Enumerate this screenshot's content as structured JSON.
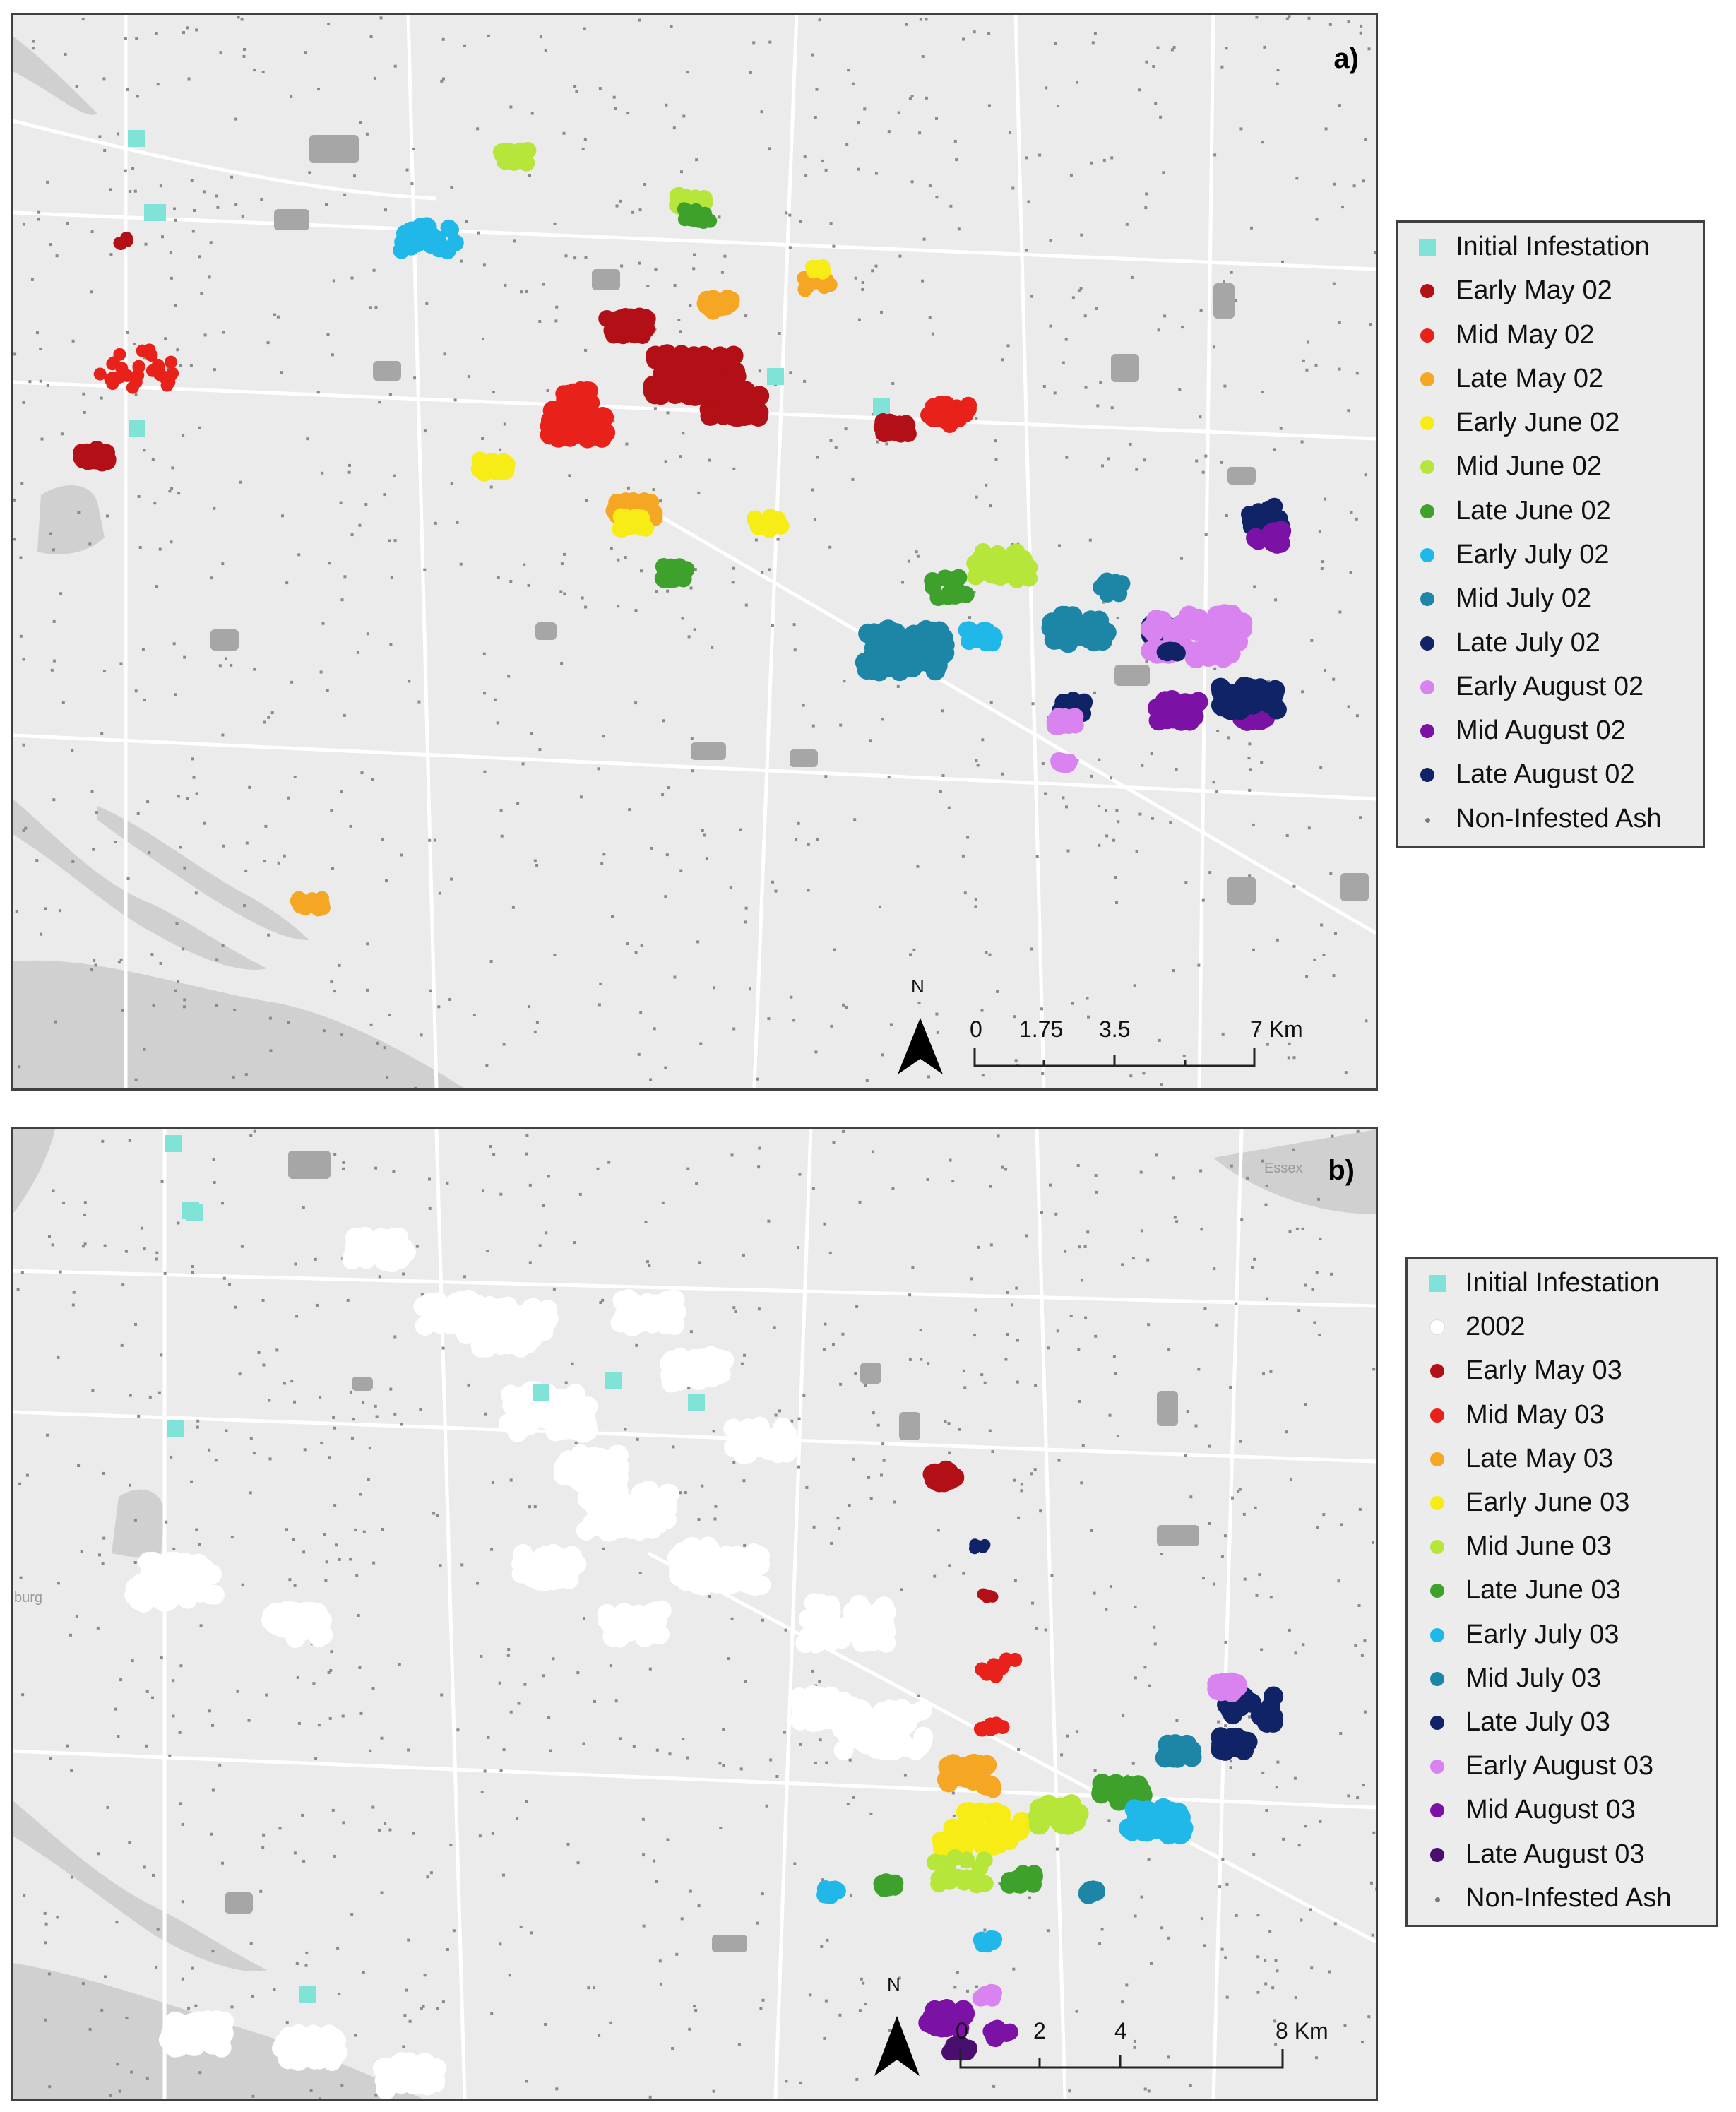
{
  "panel_a": {
    "letter": "a)",
    "place_labels": [],
    "legend": [
      {
        "label": "Initial Infestation",
        "color": "#7fe3d8",
        "shape": "square"
      },
      {
        "label": "Early May 02",
        "color": "#b21016",
        "shape": "circle"
      },
      {
        "label": "Mid May 02",
        "color": "#e8221a",
        "shape": "circle"
      },
      {
        "label": "Late May 02",
        "color": "#f5a623",
        "shape": "circle"
      },
      {
        "label": "Early June 02",
        "color": "#f7ec16",
        "shape": "circle"
      },
      {
        "label": "Mid June 02",
        "color": "#b6e63a",
        "shape": "circle"
      },
      {
        "label": "Late June 02",
        "color": "#3ea12b",
        "shape": "circle"
      },
      {
        "label": "Early July 02",
        "color": "#1fb8e8",
        "shape": "circle"
      },
      {
        "label": "Mid July 02",
        "color": "#1d86a6",
        "shape": "circle"
      },
      {
        "label": "Late July 02",
        "color": "#0f2366",
        "shape": "circle"
      },
      {
        "label": "Early August 02",
        "color": "#d883f0",
        "shape": "circle"
      },
      {
        "label": "Mid August 02",
        "color": "#7b12a5",
        "shape": "circle"
      },
      {
        "label": "Late August 02",
        "color": "#0f2366",
        "shape": "circle"
      },
      {
        "label": "Non-Infested Ash",
        "color": "#7a7a7a",
        "shape": "dot"
      }
    ],
    "scale": {
      "labels": [
        "0",
        "1.75",
        "3.5",
        "7 Km"
      ],
      "north": "N"
    }
  },
  "panel_b": {
    "letter": "b)",
    "place_labels": [
      "Essex",
      "burg"
    ],
    "legend": [
      {
        "label": "Initial Infestation",
        "color": "#7fe3d8",
        "shape": "square"
      },
      {
        "label": "2002",
        "color": "#ffffff",
        "shape": "circle"
      },
      {
        "label": "Early May 03",
        "color": "#b21016",
        "shape": "circle"
      },
      {
        "label": "Mid May 03",
        "color": "#e8221a",
        "shape": "circle"
      },
      {
        "label": "Late May 03",
        "color": "#f5a623",
        "shape": "circle"
      },
      {
        "label": "Early June 03",
        "color": "#f7ec16",
        "shape": "circle"
      },
      {
        "label": "Mid June 03",
        "color": "#b6e63a",
        "shape": "circle"
      },
      {
        "label": "Late June 03",
        "color": "#3ea12b",
        "shape": "circle"
      },
      {
        "label": "Early July 03",
        "color": "#1fb8e8",
        "shape": "circle"
      },
      {
        "label": "Mid July 03",
        "color": "#1d86a6",
        "shape": "circle"
      },
      {
        "label": "Late July 03",
        "color": "#0f2366",
        "shape": "circle"
      },
      {
        "label": "Early August 03",
        "color": "#d883f0",
        "shape": "circle"
      },
      {
        "label": "Mid August 03",
        "color": "#7b12a5",
        "shape": "circle"
      },
      {
        "label": "Late August 03",
        "color": "#4a0f6e",
        "shape": "circle"
      },
      {
        "label": "Non-Infested Ash",
        "color": "#7a7a7a",
        "shape": "dot"
      }
    ],
    "scale": {
      "labels": [
        "0",
        "2",
        "4",
        "8 Km"
      ],
      "north": "N"
    }
  }
}
